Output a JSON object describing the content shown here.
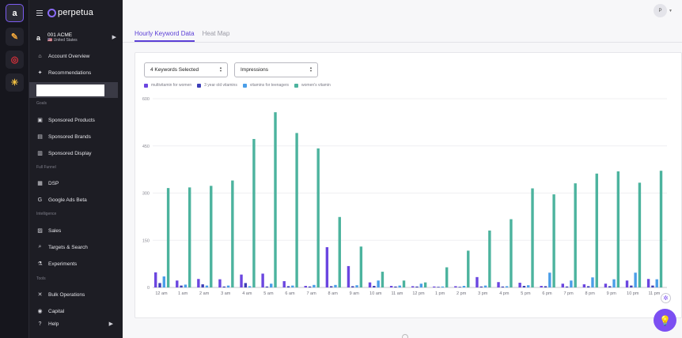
{
  "rail": [
    {
      "icon": "amazon-icon",
      "glyph": "a",
      "color": "#ffffff",
      "active": true
    },
    {
      "icon": "pencil-icon",
      "glyph": "✎",
      "color": "#f0a63b",
      "active": false
    },
    {
      "icon": "target-icon",
      "glyph": "◎",
      "color": "#e0313b",
      "active": false
    },
    {
      "icon": "walmart-spark-icon",
      "glyph": "✳",
      "color": "#f5c342",
      "active": false
    }
  ],
  "brand": {
    "name": "perpetua"
  },
  "account": {
    "channel_glyph": "a",
    "name": "001 ACME",
    "country": "🇺🇸 United States"
  },
  "nav": {
    "top_items": [
      {
        "label": "Account Overview",
        "icon": "home-icon"
      },
      {
        "label": "Recommendations",
        "icon": "lightbulb-icon"
      }
    ],
    "sections": [
      {
        "title": "Goals",
        "items": [
          {
            "label": "Sponsored Products",
            "icon": "product-box-icon"
          },
          {
            "label": "Sponsored Brands",
            "icon": "brand-grid-icon"
          },
          {
            "label": "Sponsored Display",
            "icon": "display-monitor-icon"
          }
        ]
      },
      {
        "title": "Full Funnel",
        "items": [
          {
            "label": "DSP",
            "icon": "dsp-grid-icon"
          },
          {
            "label": "Google Ads Beta",
            "icon": "google-icon"
          }
        ]
      },
      {
        "title": "Intelligence",
        "items": [
          {
            "label": "Sales",
            "icon": "sales-chart-icon"
          },
          {
            "label": "Targets & Search",
            "icon": "search-target-icon"
          },
          {
            "label": "Experiments",
            "icon": "flask-icon"
          }
        ]
      },
      {
        "title": "Tools",
        "items": [
          {
            "label": "Bulk Operations",
            "icon": "tools-icon"
          },
          {
            "label": "Capital",
            "icon": "capital-coin-icon"
          },
          {
            "label": "Help",
            "icon": "help-circle-icon"
          }
        ]
      }
    ]
  },
  "header": {
    "avatar_initial": "P"
  },
  "tabs": [
    {
      "label": "Hourly Keyword Data",
      "active": true
    },
    {
      "label": "Heat Map",
      "active": false
    }
  ],
  "controls": {
    "keywords_select": "4 Keywords Selected",
    "metric_select": "Impressions"
  },
  "chart_data": {
    "type": "bar",
    "title": "",
    "xlabel": "",
    "ylabel": "",
    "ylim": [
      0,
      600
    ],
    "yticks": [
      0,
      150,
      300,
      450,
      600
    ],
    "categories": [
      "12 am",
      "1 am",
      "2 am",
      "3 am",
      "4 am",
      "5 am",
      "6 am",
      "7 am",
      "8 am",
      "9 am",
      "10 am",
      "11 am",
      "12 pm",
      "1 pm",
      "2 pm",
      "3 pm",
      "4 pm",
      "5 pm",
      "6 pm",
      "7 pm",
      "8 pm",
      "9 pm",
      "10 pm",
      "11 pm"
    ],
    "series": [
      {
        "name": "multivitamin for women",
        "color": "#6b46e0",
        "values": [
          48,
          22,
          27,
          26,
          41,
          44,
          20,
          5,
          128,
          68,
          16,
          5,
          4,
          3,
          4,
          33,
          17,
          15,
          5,
          12,
          10,
          12,
          22,
          27
        ]
      },
      {
        "name": "3 year old vitamins",
        "color": "#3d3fb8",
        "values": [
          14,
          6,
          10,
          3,
          14,
          3,
          4,
          3,
          4,
          4,
          5,
          3,
          3,
          2,
          2,
          3,
          3,
          5,
          4,
          3,
          4,
          4,
          6,
          6
        ]
      },
      {
        "name": "vitamins for teenagers",
        "color": "#4a9ee8",
        "values": [
          35,
          9,
          6,
          6,
          4,
          12,
          6,
          8,
          8,
          7,
          22,
          6,
          12,
          3,
          5,
          6,
          4,
          7,
          47,
          22,
          32,
          26,
          47,
          26
        ]
      },
      {
        "name": "women's vitamin",
        "color": "#4cb39e",
        "values": [
          316,
          318,
          323,
          340,
          472,
          557,
          491,
          442,
          224,
          130,
          50,
          22,
          16,
          64,
          117,
          181,
          217,
          315,
          296,
          331,
          362,
          369,
          333,
          371
        ]
      }
    ]
  }
}
